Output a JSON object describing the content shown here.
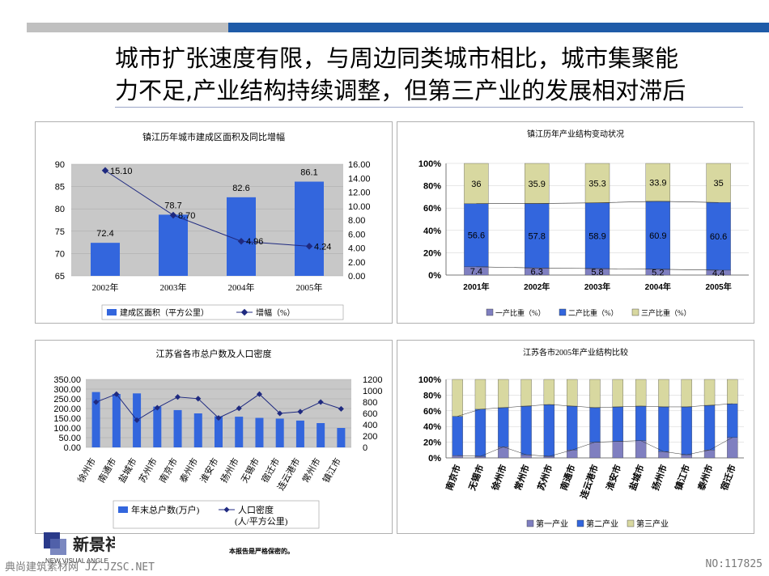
{
  "page": {
    "title_line1": "城市扩张速度有限，与周边同类城市相比，城市集聚能",
    "title_line2": "力不足,产业结构持续调整，但第三产业的发展相对滞后",
    "note": "本报告是严格保密的。",
    "logo_text": "新景祥",
    "logo_subtext": "NEW VISUAL ANGLE",
    "watermark_left": "典尚建筑素材网 JZ.JZSC.NET",
    "watermark_right": "NO:117825"
  },
  "colors": {
    "bar_blue": "#3366dd",
    "line_navy": "#1f2a80",
    "tertiary": "#d8d8a0",
    "primary": "#7f7fc0",
    "plot_bg": "#c8c8c8"
  },
  "chart_data": [
    {
      "type": "bar",
      "title": "镇江历年城市建成区面积及同比增幅",
      "categories": [
        "2002年",
        "2003年",
        "2004年",
        "2005年"
      ],
      "series": [
        {
          "name": "建成区面积（平方公里）",
          "type": "bar",
          "axis": "left",
          "values": [
            72.4,
            78.7,
            82.6,
            86.1
          ]
        },
        {
          "name": "增幅（%）",
          "type": "line",
          "axis": "right",
          "values": [
            15.1,
            8.7,
            4.96,
            4.24
          ]
        }
      ],
      "y_left": {
        "min": 65,
        "max": 90,
        "ticks": [
          "65",
          "70",
          "75",
          "80",
          "85",
          "90"
        ]
      },
      "y_right": {
        "min": 0,
        "max": 16,
        "ticks": [
          "0.00",
          "2.00",
          "4.00",
          "6.00",
          "8.00",
          "10.00",
          "12.00",
          "14.00",
          "16.00"
        ]
      },
      "bar_labels": [
        "72.4",
        "78.7",
        "82.6",
        "86.1"
      ],
      "line_labels": [
        "15.10",
        "8.70",
        "4.96",
        "4.24"
      ],
      "legend": "bottom"
    },
    {
      "type": "bar",
      "stacked": true,
      "title": "镇江历年产业结构变动状况",
      "categories": [
        "2001年",
        "2002年",
        "2003年",
        "2004年",
        "2005年"
      ],
      "series": [
        {
          "name": "一产比重（%）",
          "values": [
            7.4,
            6.3,
            5.8,
            5.2,
            4.4
          ]
        },
        {
          "name": "二产比重（%）",
          "values": [
            56.6,
            57.8,
            58.9,
            60.9,
            60.6
          ]
        },
        {
          "name": "三产比重（%）",
          "values": [
            36,
            35.9,
            35.3,
            33.9,
            35
          ]
        }
      ],
      "labels": [
        [
          "7.4",
          "6.3",
          "5.8",
          "5.2",
          "4.4"
        ],
        [
          "56.6",
          "57.8",
          "58.9",
          "60.9",
          "60.6"
        ],
        [
          "36",
          "35.9",
          "35.3",
          "33.9",
          "35"
        ]
      ],
      "y_ticks": [
        "0%",
        "20%",
        "40%",
        "60%",
        "80%",
        "100%"
      ],
      "legend": "bottom"
    },
    {
      "type": "bar",
      "title": "江苏省各市总户数及人口密度",
      "categories": [
        "徐州市",
        "南通市",
        "盐城市",
        "苏州市",
        "南京市",
        "泰州市",
        "淮安市",
        "扬州市",
        "无锡市",
        "宿迁市",
        "连云港市",
        "常州市",
        "镇江市"
      ],
      "series": [
        {
          "name": "年末总户数(万户)",
          "type": "bar",
          "axis": "left",
          "values": [
            285,
            275,
            278,
            210,
            192,
            175,
            160,
            158,
            152,
            148,
            138,
            125,
            100
          ]
        },
        {
          "name": "人口密度",
          "name_line2": "(人/平方公里)",
          "type": "line",
          "axis": "right",
          "values": [
            800,
            940,
            480,
            700,
            890,
            860,
            520,
            690,
            940,
            600,
            630,
            800,
            680
          ]
        }
      ],
      "y_left": {
        "min": 0,
        "max": 350,
        "ticks": [
          "0.00",
          "50.00",
          "100.00",
          "150.00",
          "200.00",
          "250.00",
          "300.00",
          "350.00"
        ]
      },
      "y_right": {
        "min": 0,
        "max": 1200,
        "ticks": [
          "0",
          "200",
          "400",
          "600",
          "800",
          "1000",
          "1200"
        ]
      },
      "legend": "bottom"
    },
    {
      "type": "bar",
      "stacked": true,
      "title": "江苏各市2005年产业结构比较",
      "categories": [
        "南京市",
        "无锡市",
        "徐州市",
        "常州市",
        "苏州市",
        "南通市",
        "连云港市",
        "淮安市",
        "盐城市",
        "扬州市",
        "镇江市",
        "泰州市",
        "宿迁市"
      ],
      "series": [
        {
          "name": "第一产业",
          "values": [
            3,
            2,
            14,
            4,
            2,
            10,
            20,
            21,
            22,
            8,
            4,
            10,
            26
          ]
        },
        {
          "name": "第二产业",
          "values": [
            50,
            60,
            50,
            62,
            66,
            56,
            44,
            44,
            44,
            57,
            61,
            57,
            43
          ]
        },
        {
          "name": "第三产业",
          "values": [
            47,
            38,
            36,
            34,
            32,
            34,
            36,
            35,
            34,
            35,
            35,
            33,
            31
          ]
        }
      ],
      "y_ticks": [
        "0%",
        "20%",
        "40%",
        "60%",
        "80%",
        "100%"
      ],
      "legend": "bottom"
    }
  ]
}
